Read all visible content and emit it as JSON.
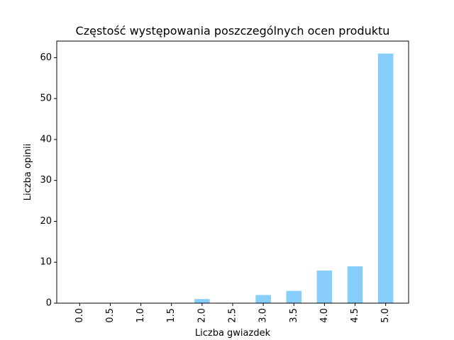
{
  "chart_data": {
    "type": "bar",
    "title": "Częstość występowania poszczególnych ocen produktu",
    "xlabel": "Liczba gwiazdek",
    "ylabel": "Liczba opinii",
    "categories": [
      "0.0",
      "0.5",
      "1.0",
      "1.5",
      "2.0",
      "2.5",
      "3.0",
      "3.5",
      "4.0",
      "4.5",
      "5.0"
    ],
    "values": [
      0,
      0,
      0,
      0,
      1,
      0,
      2,
      3,
      8,
      9,
      61
    ],
    "yticks": [
      0,
      10,
      20,
      30,
      40,
      50,
      60
    ],
    "ylim": [
      0,
      64.05
    ],
    "grid": false,
    "legend": "none"
  },
  "colors": {
    "bar": "#87cefa",
    "axis": "#000000",
    "background": "#ffffff"
  }
}
